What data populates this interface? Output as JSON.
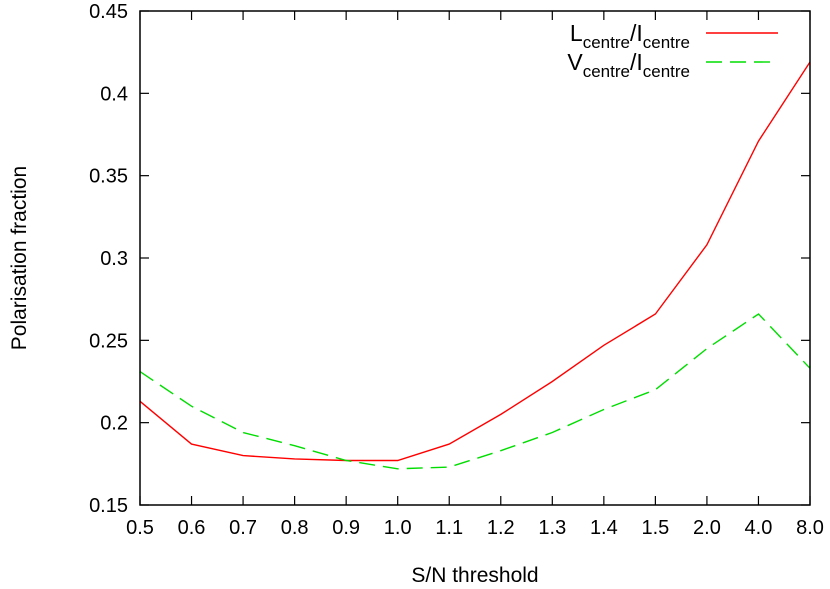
{
  "chart_data": {
    "type": "line",
    "xlabel": "S/N threshold",
    "ylabel": "Polarisation fraction",
    "categories": [
      "0.5",
      "0.6",
      "0.7",
      "0.8",
      "0.9",
      "1.0",
      "1.1",
      "1.2",
      "1.3",
      "1.4",
      "1.5",
      "2.0",
      "4.0",
      "8.0"
    ],
    "ylim": [
      0.15,
      0.45
    ],
    "yticks": [
      "0.15",
      "0.2",
      "0.25",
      "0.3",
      "0.35",
      "0.4",
      "0.45"
    ],
    "grid": false,
    "legend_position": "top-right",
    "series": [
      {
        "name_main": "L",
        "name_sub": "centre",
        "name_sep": "/I",
        "name_sub2": "centre",
        "color": "#ff0000",
        "dash": "solid",
        "values": [
          0.213,
          0.187,
          0.18,
          0.178,
          0.177,
          0.177,
          0.187,
          0.205,
          0.225,
          0.247,
          0.266,
          0.308,
          0.371,
          0.419
        ]
      },
      {
        "name_main": "V",
        "name_sub": "centre",
        "name_sep": "/I",
        "name_sub2": "centre",
        "color": "#00dd00",
        "dash": "dashed",
        "values": [
          0.231,
          0.21,
          0.194,
          0.186,
          0.177,
          0.172,
          0.173,
          0.183,
          0.194,
          0.208,
          0.22,
          0.245,
          0.266,
          0.233
        ]
      }
    ]
  }
}
